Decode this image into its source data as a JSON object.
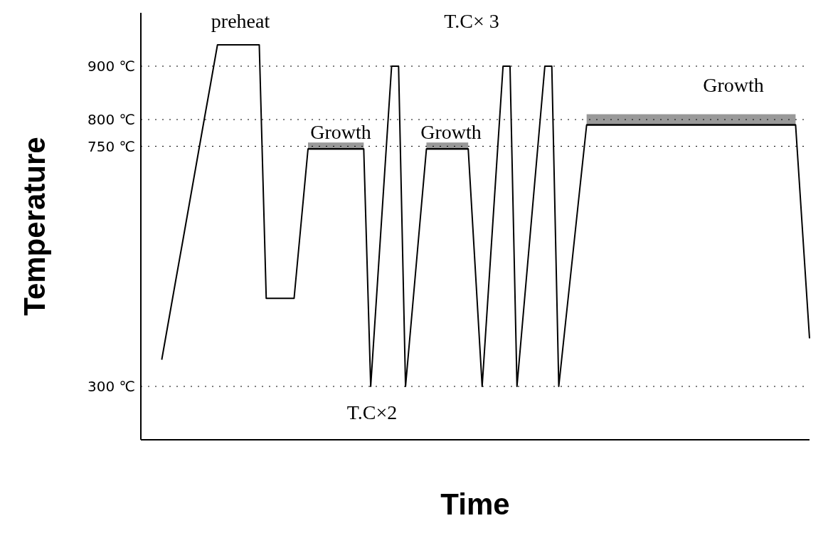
{
  "chart_data": {
    "type": "line",
    "xlabel": "Time",
    "ylabel": "Temperature",
    "ylim": [
      200,
      1000
    ],
    "yticks": [
      {
        "value": 300,
        "label": "300 ℃"
      },
      {
        "value": 750,
        "label": "750 ℃"
      },
      {
        "value": 800,
        "label": "800 ℃"
      },
      {
        "value": 900,
        "label": "900 ℃"
      }
    ],
    "tick_labels": "y",
    "grid": false,
    "marker": "none",
    "line_style": "solid",
    "categories": [
      null,
      null,
      null,
      null,
      null,
      null,
      null,
      null,
      null,
      null,
      null,
      null,
      null,
      null,
      null,
      null,
      null,
      null,
      null,
      null,
      null,
      null,
      null,
      null,
      null,
      null,
      null,
      null,
      null,
      null,
      null,
      null,
      null,
      null,
      null,
      null,
      null,
      null,
      null,
      null,
      null,
      null,
      null,
      null,
      null,
      null,
      null,
      null,
      null,
      null,
      null,
      null,
      null,
      null,
      null,
      null,
      null,
      null,
      null,
      null,
      null,
      null,
      null,
      null,
      null,
      null,
      null,
      null,
      null,
      null,
      null,
      null,
      null,
      null,
      null,
      null,
      null,
      null,
      null,
      null,
      null,
      null,
      null,
      null,
      null,
      null,
      null,
      null,
      null,
      null,
      null,
      null,
      null,
      null,
      null,
      null,
      null
    ],
    "series": [
      {
        "color": "#000000",
        "values": [
          null,
          null,
          null,
          350,
          424,
          498,
          571,
          645,
          719,
          793,
          866,
          940,
          940,
          940,
          940,
          940,
          940,
          940,
          465,
          465,
          465,
          465,
          465,
          605,
          745,
          745,
          745,
          745,
          745,
          745,
          745,
          745,
          745,
          300,
          500,
          700,
          900,
          900,
          300,
          448,
          597,
          745,
          745,
          745,
          745,
          745,
          745,
          745,
          523,
          300,
          500,
          700,
          900,
          900,
          300,
          450,
          600,
          750,
          900,
          900,
          300,
          423,
          545,
          668,
          790,
          790,
          790,
          790,
          790,
          790,
          790,
          790,
          790,
          790,
          790,
          790,
          790,
          790,
          790,
          790,
          790,
          790,
          790,
          790,
          790,
          790,
          790,
          790,
          790,
          790,
          790,
          790,
          790,
          790,
          790,
          590,
          390
        ]
      },
      {
        "color": "#000000",
        "values": [
          null,
          null,
          null,
          null,
          null,
          null,
          null,
          null,
          null,
          null,
          null,
          null,
          null,
          null,
          null,
          null,
          null,
          null,
          null,
          null,
          null,
          null,
          null,
          null,
          745,
          745,
          745,
          745,
          745,
          745,
          745,
          745,
          745,
          null,
          null,
          null,
          null,
          null,
          null,
          null,
          null,
          745,
          745,
          745,
          745,
          745,
          745,
          745,
          null,
          null,
          null,
          null,
          null,
          null,
          null,
          null,
          null,
          null,
          null,
          null,
          null,
          null,
          null,
          null,
          790,
          790,
          790,
          790,
          790,
          790,
          790,
          790,
          790,
          790,
          790,
          790,
          790,
          790,
          790,
          790,
          790,
          790,
          790,
          790,
          790,
          790,
          790,
          790,
          790,
          790,
          790,
          790,
          790,
          790,
          790,
          null,
          null
        ],
        "lower": [
          null,
          null,
          null,
          null,
          null,
          null,
          null,
          null,
          null,
          null,
          null,
          null,
          null,
          null,
          null,
          null,
          null,
          null,
          null,
          null,
          null,
          null,
          null,
          null,
          745,
          745,
          745,
          745,
          745,
          745,
          745,
          745,
          745,
          null,
          null,
          null,
          null,
          null,
          null,
          null,
          null,
          745,
          745,
          745,
          745,
          745,
          745,
          745,
          null,
          null,
          null,
          null,
          null,
          null,
          null,
          null,
          null,
          null,
          null,
          null,
          null,
          null,
          null,
          null,
          790,
          790,
          790,
          790,
          790,
          790,
          790,
          790,
          790,
          790,
          790,
          790,
          790,
          790,
          790,
          790,
          790,
          790,
          790,
          790,
          790,
          790,
          790,
          790,
          790,
          790,
          790,
          790,
          790,
          790,
          790,
          null,
          null
        ],
        "upper": [
          null,
          null,
          null,
          null,
          null,
          null,
          null,
          null,
          null,
          null,
          null,
          null,
          null,
          null,
          null,
          null,
          null,
          null,
          null,
          null,
          null,
          null,
          null,
          null,
          757,
          757,
          757,
          757,
          757,
          757,
          757,
          757,
          757,
          null,
          null,
          null,
          null,
          null,
          null,
          null,
          null,
          757,
          757,
          757,
          757,
          757,
          757,
          757,
          null,
          null,
          null,
          null,
          null,
          null,
          null,
          null,
          null,
          null,
          null,
          null,
          null,
          null,
          null,
          null,
          810,
          810,
          810,
          810,
          810,
          810,
          810,
          810,
          810,
          810,
          810,
          810,
          810,
          810,
          810,
          810,
          810,
          810,
          810,
          810,
          810,
          810,
          810,
          810,
          810,
          810,
          810,
          810,
          810,
          810,
          810,
          null,
          null
        ]
      }
    ],
    "ref_lines": [
      {
        "axis": "y",
        "value": 900,
        "line_style": "dotted",
        "color": "#000000"
      },
      {
        "axis": "y",
        "value": 800,
        "line_style": "dotted",
        "color": "#000000"
      },
      {
        "axis": "y",
        "value": 750,
        "line_style": "dotted",
        "color": "#000000"
      },
      {
        "axis": "y",
        "value": 300,
        "line_style": "dotted",
        "color": "#000000"
      }
    ],
    "annotations": [
      "preheat",
      "Growth",
      "Growth",
      "Growth",
      "T.C× 3",
      "T.C×2"
    ]
  }
}
